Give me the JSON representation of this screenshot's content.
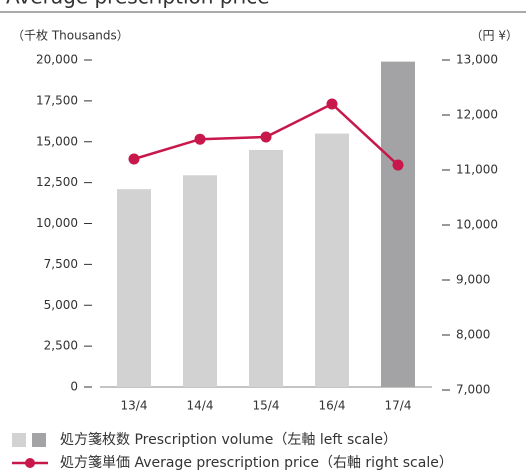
{
  "chart_data": {
    "type": "bar_line",
    "title": "Average prescription price",
    "y_axis_label": "（千枚 Thousands）",
    "y2_axis_label": "（円 ¥）",
    "categories": [
      "13/4",
      "14/4",
      "15/4",
      "16/4",
      "17/4"
    ],
    "ylim": [
      0,
      20000
    ],
    "yticks": [
      0,
      {
        "value": 2500,
        "label": "2,500"
      },
      {
        "value": 5000,
        "label": "5,000"
      },
      {
        "value": 7500,
        "label": "7,500"
      },
      {
        "value": 10000,
        "label": "10,000"
      },
      {
        "value": 12500,
        "label": "12,500"
      },
      {
        "value": 15000,
        "label": "15,000"
      },
      {
        "value": 17500,
        "label": "17,500"
      },
      {
        "value": 20000,
        "label": "20,000"
      }
    ],
    "y2lim": [
      7000,
      13000
    ],
    "y2ticks": [
      {
        "value": 7000,
        "label": "7,000"
      },
      {
        "value": 8000,
        "label": "8,000"
      },
      {
        "value": 9000,
        "label": "9,000"
      },
      {
        "value": 10000,
        "label": "10,000"
      },
      {
        "value": 11000,
        "label": "11,000"
      },
      {
        "value": 12000,
        "label": "12,000"
      },
      {
        "value": 13000,
        "label": "13,000"
      }
    ],
    "series": [
      {
        "name": "処方箋枚数 Prescription volume（左軸 left scale）",
        "type": "bar",
        "colors": [
          "#d2d2d3",
          "#d2d2d3",
          "#d2d2d3",
          "#d2d2d3",
          "#a3a3a5"
        ],
        "values": [
          12100,
          12950,
          14500,
          15500,
          19900
        ]
      },
      {
        "name": "処方箋単価 Average prescription price（右軸 right scale）",
        "type": "line",
        "axis": "y2",
        "color": "#c8174a",
        "values": [
          11200,
          11560,
          11600,
          12200,
          11090
        ]
      }
    ]
  }
}
